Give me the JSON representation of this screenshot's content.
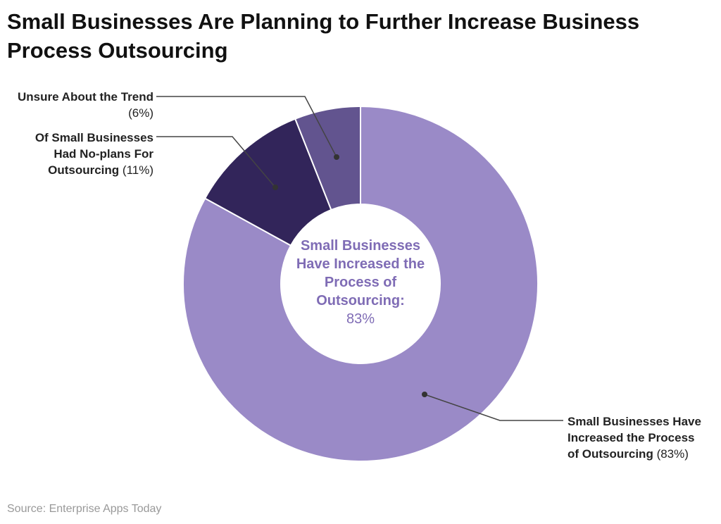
{
  "title": "Small Businesses Are Planning to Further Increase Business Process Outsourcing",
  "source": "Source: Enterprise Apps Today",
  "chart_data": {
    "type": "pie",
    "subtype": "donut",
    "title": "Small Businesses Are Planning to Further Increase Business Process Outsourcing",
    "slices": [
      {
        "label": "Small Businesses Have Increased the Process of Outsourcing",
        "value": 83,
        "display": "(83%)",
        "color": "#9a8ac7"
      },
      {
        "label": "Of Small Businesses Had No-plans For Outsourcing",
        "value": 11,
        "display": "(11%)",
        "color": "#32255a"
      },
      {
        "label": "Unsure About the Trend",
        "value": 6,
        "display": "(6%)",
        "color": "#62548f"
      }
    ],
    "center_label": {
      "text": "Small Businesses Have Increased the Process of Outsourcing:",
      "value": "83%",
      "color": "#7f6cb5"
    },
    "start": "top",
    "direction": "clockwise"
  }
}
